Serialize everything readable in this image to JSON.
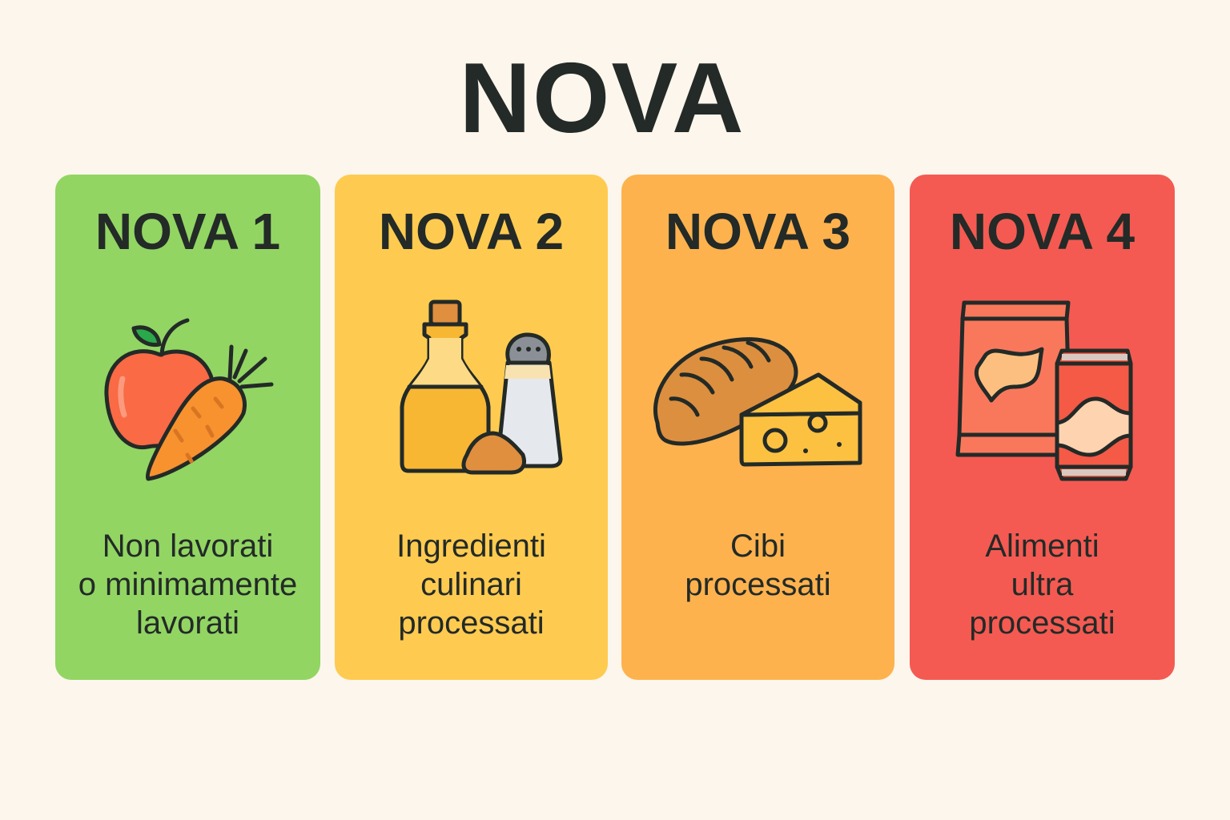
{
  "title": "NOVA",
  "cards": [
    {
      "heading": "NOVA 1",
      "lines": [
        "Non lavorati",
        "o minimamente",
        "lavorati"
      ],
      "color": "#92d563",
      "icon": "apple-carrot-icon"
    },
    {
      "heading": "NOVA 2",
      "lines": [
        "Ingredienti",
        "culinari",
        "processati"
      ],
      "color": "#fecb50",
      "icon": "oil-salt-icon"
    },
    {
      "heading": "NOVA 3",
      "lines": [
        "Cibi",
        "processati"
      ],
      "color": "#fdb24e",
      "icon": "bread-cheese-icon"
    },
    {
      "heading": "NOVA 4",
      "lines": [
        "Alimenti",
        "ultra",
        "processati"
      ],
      "color": "#f45a52",
      "icon": "snack-soda-icon"
    }
  ]
}
